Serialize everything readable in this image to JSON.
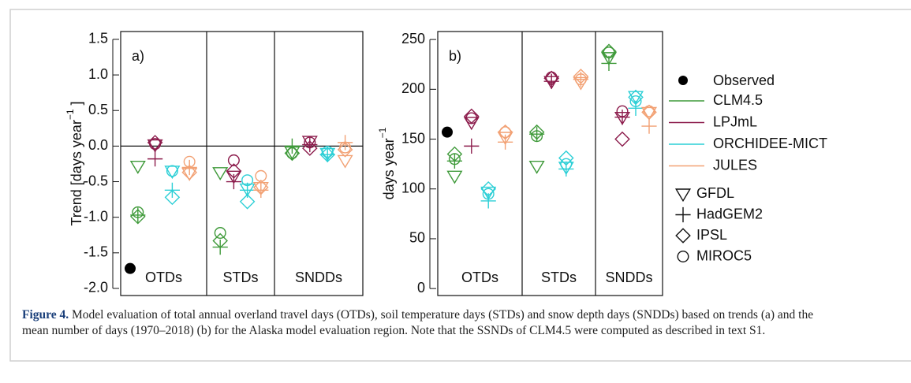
{
  "chart_data": [
    {
      "type": "scatter",
      "panel_label": "a)",
      "ylabel": {
        "text": "Trend [days year",
        "superscript": "−1",
        "suffix": " ]"
      },
      "categories": [
        "OTDs",
        "STDs",
        "SNDDs"
      ],
      "ylim": [
        -2.1,
        1.61
      ],
      "yticks": [
        {
          "value": -2,
          "label": "-2.0"
        },
        -1.5,
        {
          "value": -1,
          "label": "-1.0"
        },
        -0.5,
        {
          "value": 0,
          "label": "0.0"
        },
        0.5,
        {
          "value": 1,
          "label": "1.0"
        },
        1.5
      ],
      "reference_line": 0,
      "observed": [
        -1.72,
        null,
        null
      ],
      "values": [
        [
          [
            -0.28,
            -0.97,
            -0.99,
            -0.93
          ],
          [
            -0.37,
            -1.42,
            -1.33,
            -1.22
          ],
          [
            -0.08,
            0.0,
            -0.1,
            -0.1
          ]
        ],
        [
          [
            0.02,
            -0.18,
            0.05,
            0.03
          ],
          [
            -0.42,
            -0.5,
            -0.35,
            -0.2
          ],
          [
            0.07,
            0.02,
            -0.03,
            0.05
          ]
        ],
        [
          [
            -0.35,
            -0.62,
            -0.72,
            -0.35
          ],
          [
            -0.6,
            -0.62,
            -0.78,
            -0.48
          ],
          [
            -0.1,
            -0.12,
            -0.12,
            -0.08
          ]
        ],
        [
          [
            -0.38,
            -0.3,
            -0.37,
            -0.22
          ],
          [
            -0.58,
            -0.62,
            -0.58,
            -0.42
          ],
          [
            -0.2,
            0.05,
            -0.05,
            -0.02
          ]
        ]
      ]
    },
    {
      "type": "scatter",
      "panel_label": "b)",
      "ylabel": {
        "text": "days year",
        "superscript": "−1",
        "suffix": ""
      },
      "categories": [
        "OTDs",
        "STDs",
        "SNDDs"
      ],
      "ylim": [
        -7,
        258
      ],
      "yticks": [
        0,
        50,
        100,
        150,
        200,
        250
      ],
      "observed": [
        157,
        null,
        null
      ],
      "values": [
        [
          [
            113,
            128,
            135,
            130
          ],
          [
            123,
            155,
            157,
            153
          ],
          [
            232,
            226,
            238,
            237
          ]
        ],
        [
          [
            167,
            143,
            173,
            171
          ],
          [
            208,
            208,
            211,
            212
          ],
          [
            172,
            172,
            150,
            178
          ]
        ],
        [
          [
            97,
            88,
            100,
            95
          ],
          [
            122,
            120,
            131,
            125
          ],
          [
            193,
            181,
            192,
            188
          ]
        ],
        [
          [
            152,
            147,
            157,
            157
          ],
          [
            207,
            210,
            213,
            210
          ],
          [
            177,
            163,
            177,
            178
          ]
        ]
      ]
    }
  ],
  "legend": {
    "observed": {
      "name": "Observed",
      "color": "#000000"
    },
    "models": [
      {
        "name": "CLM4.5",
        "color": "#3f9a3a"
      },
      {
        "name": "LPJmL",
        "color": "#8c1c4c"
      },
      {
        "name": "ORCHIDEE-MICT",
        "color": "#2ccfd6"
      },
      {
        "name": "JULES",
        "color": "#f2a174"
      }
    ],
    "gcms": [
      {
        "name": "GFDL",
        "shape": "triangle-down"
      },
      {
        "name": "HadGEM2",
        "shape": "plus"
      },
      {
        "name": "IPSL",
        "shape": "diamond"
      },
      {
        "name": "MIROC5",
        "shape": "circle"
      }
    ]
  },
  "caption": {
    "label": "Figure 4.",
    "text": "Model evaluation of total annual overland travel days (OTDs), soil temperature days (STDs) and snow depth days (SNDDs) based on trends (a) and the mean number of days (1970–2018) (b) for the Alaska model evaluation region. Note that the SSNDs of CLM4.5 were computed as described in text S1."
  }
}
